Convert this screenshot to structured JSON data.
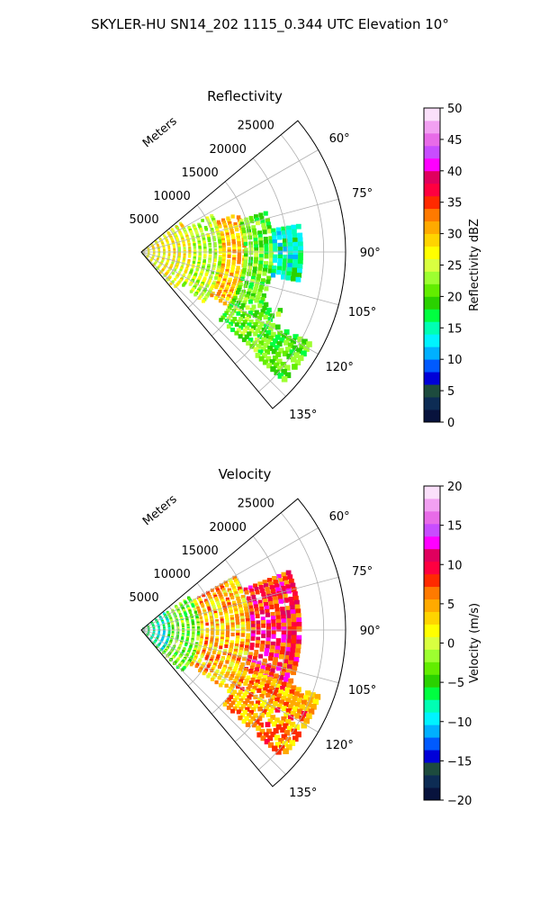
{
  "figure_title": "SKYLER-HU  SN14_202  1115_0.344 UTC Elevation 10°",
  "chart_data": [
    {
      "type": "polar-sector",
      "title": "Reflectivity",
      "r_axis_label": "Meters",
      "r_ticks": [
        5000,
        10000,
        15000,
        20000,
        25000
      ],
      "r_tick_labels": [
        "5000",
        "10000",
        "15000",
        "20000",
        "25000"
      ],
      "r_max": 28000,
      "theta_range_deg": [
        50,
        140
      ],
      "theta_ticks_deg": [
        60,
        75,
        90,
        105,
        120,
        135
      ],
      "theta_tick_labels": [
        "60°",
        "75°",
        "90°",
        "105°",
        "120°",
        "135°"
      ],
      "colorbar": {
        "label": "Reflectivity dBZ",
        "range": [
          0,
          50
        ],
        "ticks": [
          0,
          5,
          10,
          15,
          20,
          25,
          30,
          35,
          40,
          45,
          50
        ],
        "tick_labels": [
          "0",
          "5",
          "10",
          "15",
          "20",
          "25",
          "30",
          "35",
          "40",
          "45",
          "50"
        ],
        "colors": [
          "#08133d",
          "#0d2c54",
          "#1d4b3e",
          "#0000d8",
          "#005aff",
          "#00b0ff",
          "#00f3ff",
          "#00ffb3",
          "#00ff40",
          "#2ad100",
          "#62ed00",
          "#9dff30",
          "#d9ff40",
          "#ffff00",
          "#ffd400",
          "#ffaa00",
          "#ff7a00",
          "#ff2a00",
          "#ff0040",
          "#e0005e",
          "#ff00ff",
          "#c84dff",
          "#e86be8",
          "#f2a0f2",
          "#fbe0fb"
        ]
      },
      "field_regions": [
        {
          "range_m": [
            0,
            7000
          ],
          "theta_deg": [
            53,
            137
          ],
          "value": 27
        },
        {
          "range_m": [
            7000,
            11000
          ],
          "theta_deg": [
            62,
            128
          ],
          "value": 24
        },
        {
          "range_m": [
            11000,
            14000
          ],
          "theta_deg": [
            68,
            122
          ],
          "value": 30
        },
        {
          "range_m": [
            14000,
            18000
          ],
          "theta_deg": [
            72,
            112
          ],
          "value": 21
        },
        {
          "range_m": [
            14000,
            21000
          ],
          "theta_deg": [
            112,
            130
          ],
          "value": 21
        },
        {
          "range_m": [
            18000,
            22000
          ],
          "theta_deg": [
            80,
            100
          ],
          "value": 15
        },
        {
          "range_m": [
            21000,
            26000
          ],
          "theta_deg": [
            118,
            131
          ],
          "value": 20
        }
      ]
    },
    {
      "type": "polar-sector",
      "title": "Velocity",
      "r_axis_label": "Meters",
      "r_ticks": [
        5000,
        10000,
        15000,
        20000,
        25000
      ],
      "r_tick_labels": [
        "5000",
        "10000",
        "15000",
        "20000",
        "25000"
      ],
      "r_max": 28000,
      "theta_range_deg": [
        50,
        140
      ],
      "theta_ticks_deg": [
        60,
        75,
        90,
        105,
        120,
        135
      ],
      "theta_tick_labels": [
        "60°",
        "75°",
        "90°",
        "105°",
        "120°",
        "135°"
      ],
      "colorbar": {
        "label": "Velocity (m/s)",
        "range": [
          -20,
          20
        ],
        "ticks": [
          -20,
          -15,
          -10,
          -5,
          0,
          5,
          10,
          15,
          20
        ],
        "tick_labels": [
          "−20",
          "−15",
          "−10",
          "−5",
          "0",
          "5",
          "10",
          "15",
          "20"
        ],
        "colors": [
          "#08133d",
          "#0d2c54",
          "#1d4b3e",
          "#0000d8",
          "#005aff",
          "#00b0ff",
          "#00f3ff",
          "#00ffb3",
          "#00ff40",
          "#2ad100",
          "#62ed00",
          "#9dff30",
          "#d9ff40",
          "#ffff00",
          "#ffd400",
          "#ffaa00",
          "#ff7a00",
          "#ff2a00",
          "#ff0040",
          "#e0005e",
          "#ff00ff",
          "#c84dff",
          "#e86be8",
          "#f2a0f2",
          "#fbe0fb"
        ]
      },
      "field_regions": [
        {
          "range_m": [
            0,
            4000
          ],
          "theta_deg": [
            53,
            137
          ],
          "value": -8
        },
        {
          "range_m": [
            4000,
            8000
          ],
          "theta_deg": [
            55,
            135
          ],
          "value": -3
        },
        {
          "range_m": [
            8000,
            15000
          ],
          "theta_deg": [
            60,
            125
          ],
          "value": 4
        },
        {
          "range_m": [
            15000,
            22000
          ],
          "theta_deg": [
            68,
            110
          ],
          "value": 9
        },
        {
          "range_m": [
            15000,
            26000
          ],
          "theta_deg": [
            110,
            131
          ],
          "value": 5
        }
      ]
    }
  ]
}
